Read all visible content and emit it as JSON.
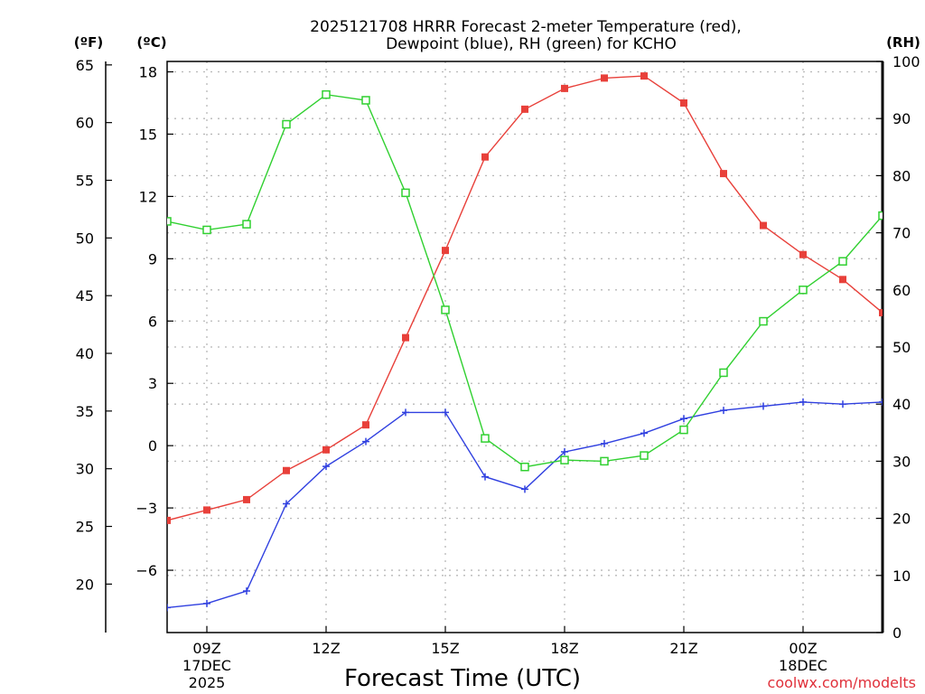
{
  "chart_data": {
    "type": "line",
    "title_line1": "2025121708 HRRR Forecast 2-meter Temperature (red),",
    "title_line2": "Dewpoint (blue), RH (green) for KCHO",
    "xlabel": "Forecast Time (UTC)",
    "credit": "coolwx.com/modelts",
    "units": {
      "fahrenheit": "(ºF)",
      "celsius": "(ºC)",
      "rh": "(RH)"
    },
    "hours": [
      8,
      9,
      10,
      11,
      12,
      13,
      14,
      15,
      16,
      17,
      18,
      19,
      20,
      21,
      22,
      23,
      24,
      25,
      26
    ],
    "x_ticks": [
      {
        "hour": 9,
        "label": "09Z",
        "date": "17DEC",
        "year": "2025"
      },
      {
        "hour": 12,
        "label": "12Z"
      },
      {
        "hour": 15,
        "label": "15Z"
      },
      {
        "hour": 18,
        "label": "18Z"
      },
      {
        "hour": 21,
        "label": "21Z"
      },
      {
        "hour": 24,
        "label": "00Z",
        "date": "18DEC"
      }
    ],
    "xlim": [
      8,
      26
    ],
    "celsius_axis": {
      "range": [
        -9,
        18.5
      ],
      "ticks": [
        18,
        15,
        12,
        9,
        6,
        3,
        0,
        -3,
        -6
      ],
      "tick_labels": [
        "18",
        "15",
        "12",
        "9",
        "6",
        "3",
        "0",
        "−3",
        "−6"
      ]
    },
    "fahrenheit_axis": {
      "ticks": [
        65,
        60,
        55,
        50,
        45,
        40,
        35,
        30,
        25,
        20
      ],
      "tick_labels": [
        "65",
        "60",
        "55",
        "50",
        "45",
        "40",
        "35",
        "30",
        "25",
        "20"
      ]
    },
    "rh_axis": {
      "range": [
        0,
        100
      ],
      "ticks": [
        100,
        90,
        80,
        70,
        60,
        50,
        40,
        30,
        20,
        10,
        0
      ],
      "tick_labels": [
        "100",
        "90",
        "80",
        "70",
        "60",
        "50",
        "40",
        "30",
        "20",
        "10",
        "0"
      ]
    },
    "series": [
      {
        "name": "Temperature",
        "color": "#e8403a",
        "axis": "celsius",
        "marker": "filled-square",
        "values": [
          -3.6,
          -3.1,
          -2.6,
          -1.2,
          -0.2,
          1.0,
          5.2,
          9.4,
          13.9,
          16.2,
          17.2,
          17.7,
          17.8,
          16.5,
          13.1,
          10.6,
          9.2,
          8.0,
          6.4
        ]
      },
      {
        "name": "Dewpoint",
        "color": "#3040e0",
        "axis": "celsius",
        "marker": "plus",
        "values": [
          -7.8,
          -7.6,
          -7.0,
          -2.8,
          -1.0,
          0.2,
          1.6,
          1.6,
          -1.5,
          -2.1,
          -0.3,
          0.1,
          0.6,
          1.3,
          1.7,
          1.9,
          2.1,
          2.0,
          2.1
        ]
      },
      {
        "name": "RH",
        "color": "#30d030",
        "axis": "rh",
        "marker": "open-square",
        "values": [
          72,
          70.5,
          71.5,
          89,
          94.2,
          93.2,
          77,
          56.5,
          34,
          29,
          30.2,
          30,
          31,
          35.5,
          45.5,
          54.5,
          60,
          65,
          73
        ]
      }
    ]
  }
}
